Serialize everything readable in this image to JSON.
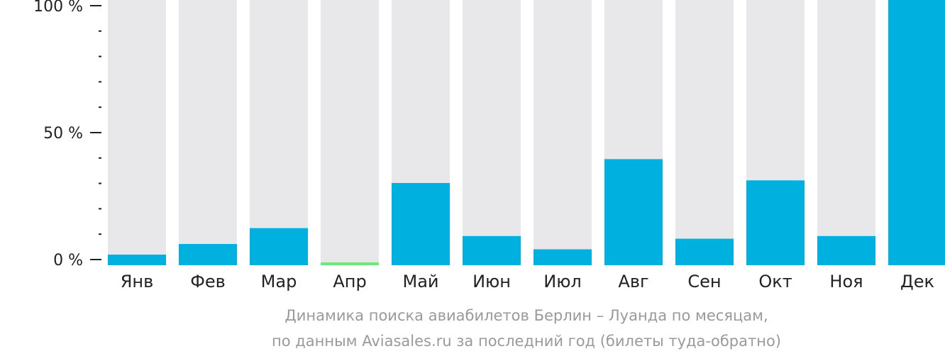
{
  "chart_data": {
    "type": "bar",
    "title": "Динамика поиска авиабилетов Берлин – Луанда по месяцам,",
    "subtitle": "по данным Aviasales.ru за последний год (билеты туда-обратно)",
    "xlabel": "",
    "ylabel": "",
    "categories": [
      "Янв",
      "Фев",
      "Мар",
      "Апр",
      "Май",
      "Июн",
      "Июл",
      "Авг",
      "Сен",
      "Окт",
      "Ноя",
      "Дек"
    ],
    "values": [
      4,
      8,
      14,
      1,
      31,
      11,
      6,
      40,
      10,
      32,
      11,
      100
    ],
    "ylim": [
      0,
      100
    ],
    "y_ticks": [
      {
        "value": 0,
        "label": "0 %"
      },
      {
        "value": 50,
        "label": "50 %"
      },
      {
        "value": 100,
        "label": "100 %"
      }
    ],
    "y_minor_step": 10,
    "grid": false,
    "legend": "none",
    "colors": {
      "bar": "#00b0de",
      "bar_low": "#6ee87a",
      "track": "#e8e8ea",
      "axis": "#222222",
      "caption": "#9a9a9a"
    }
  }
}
